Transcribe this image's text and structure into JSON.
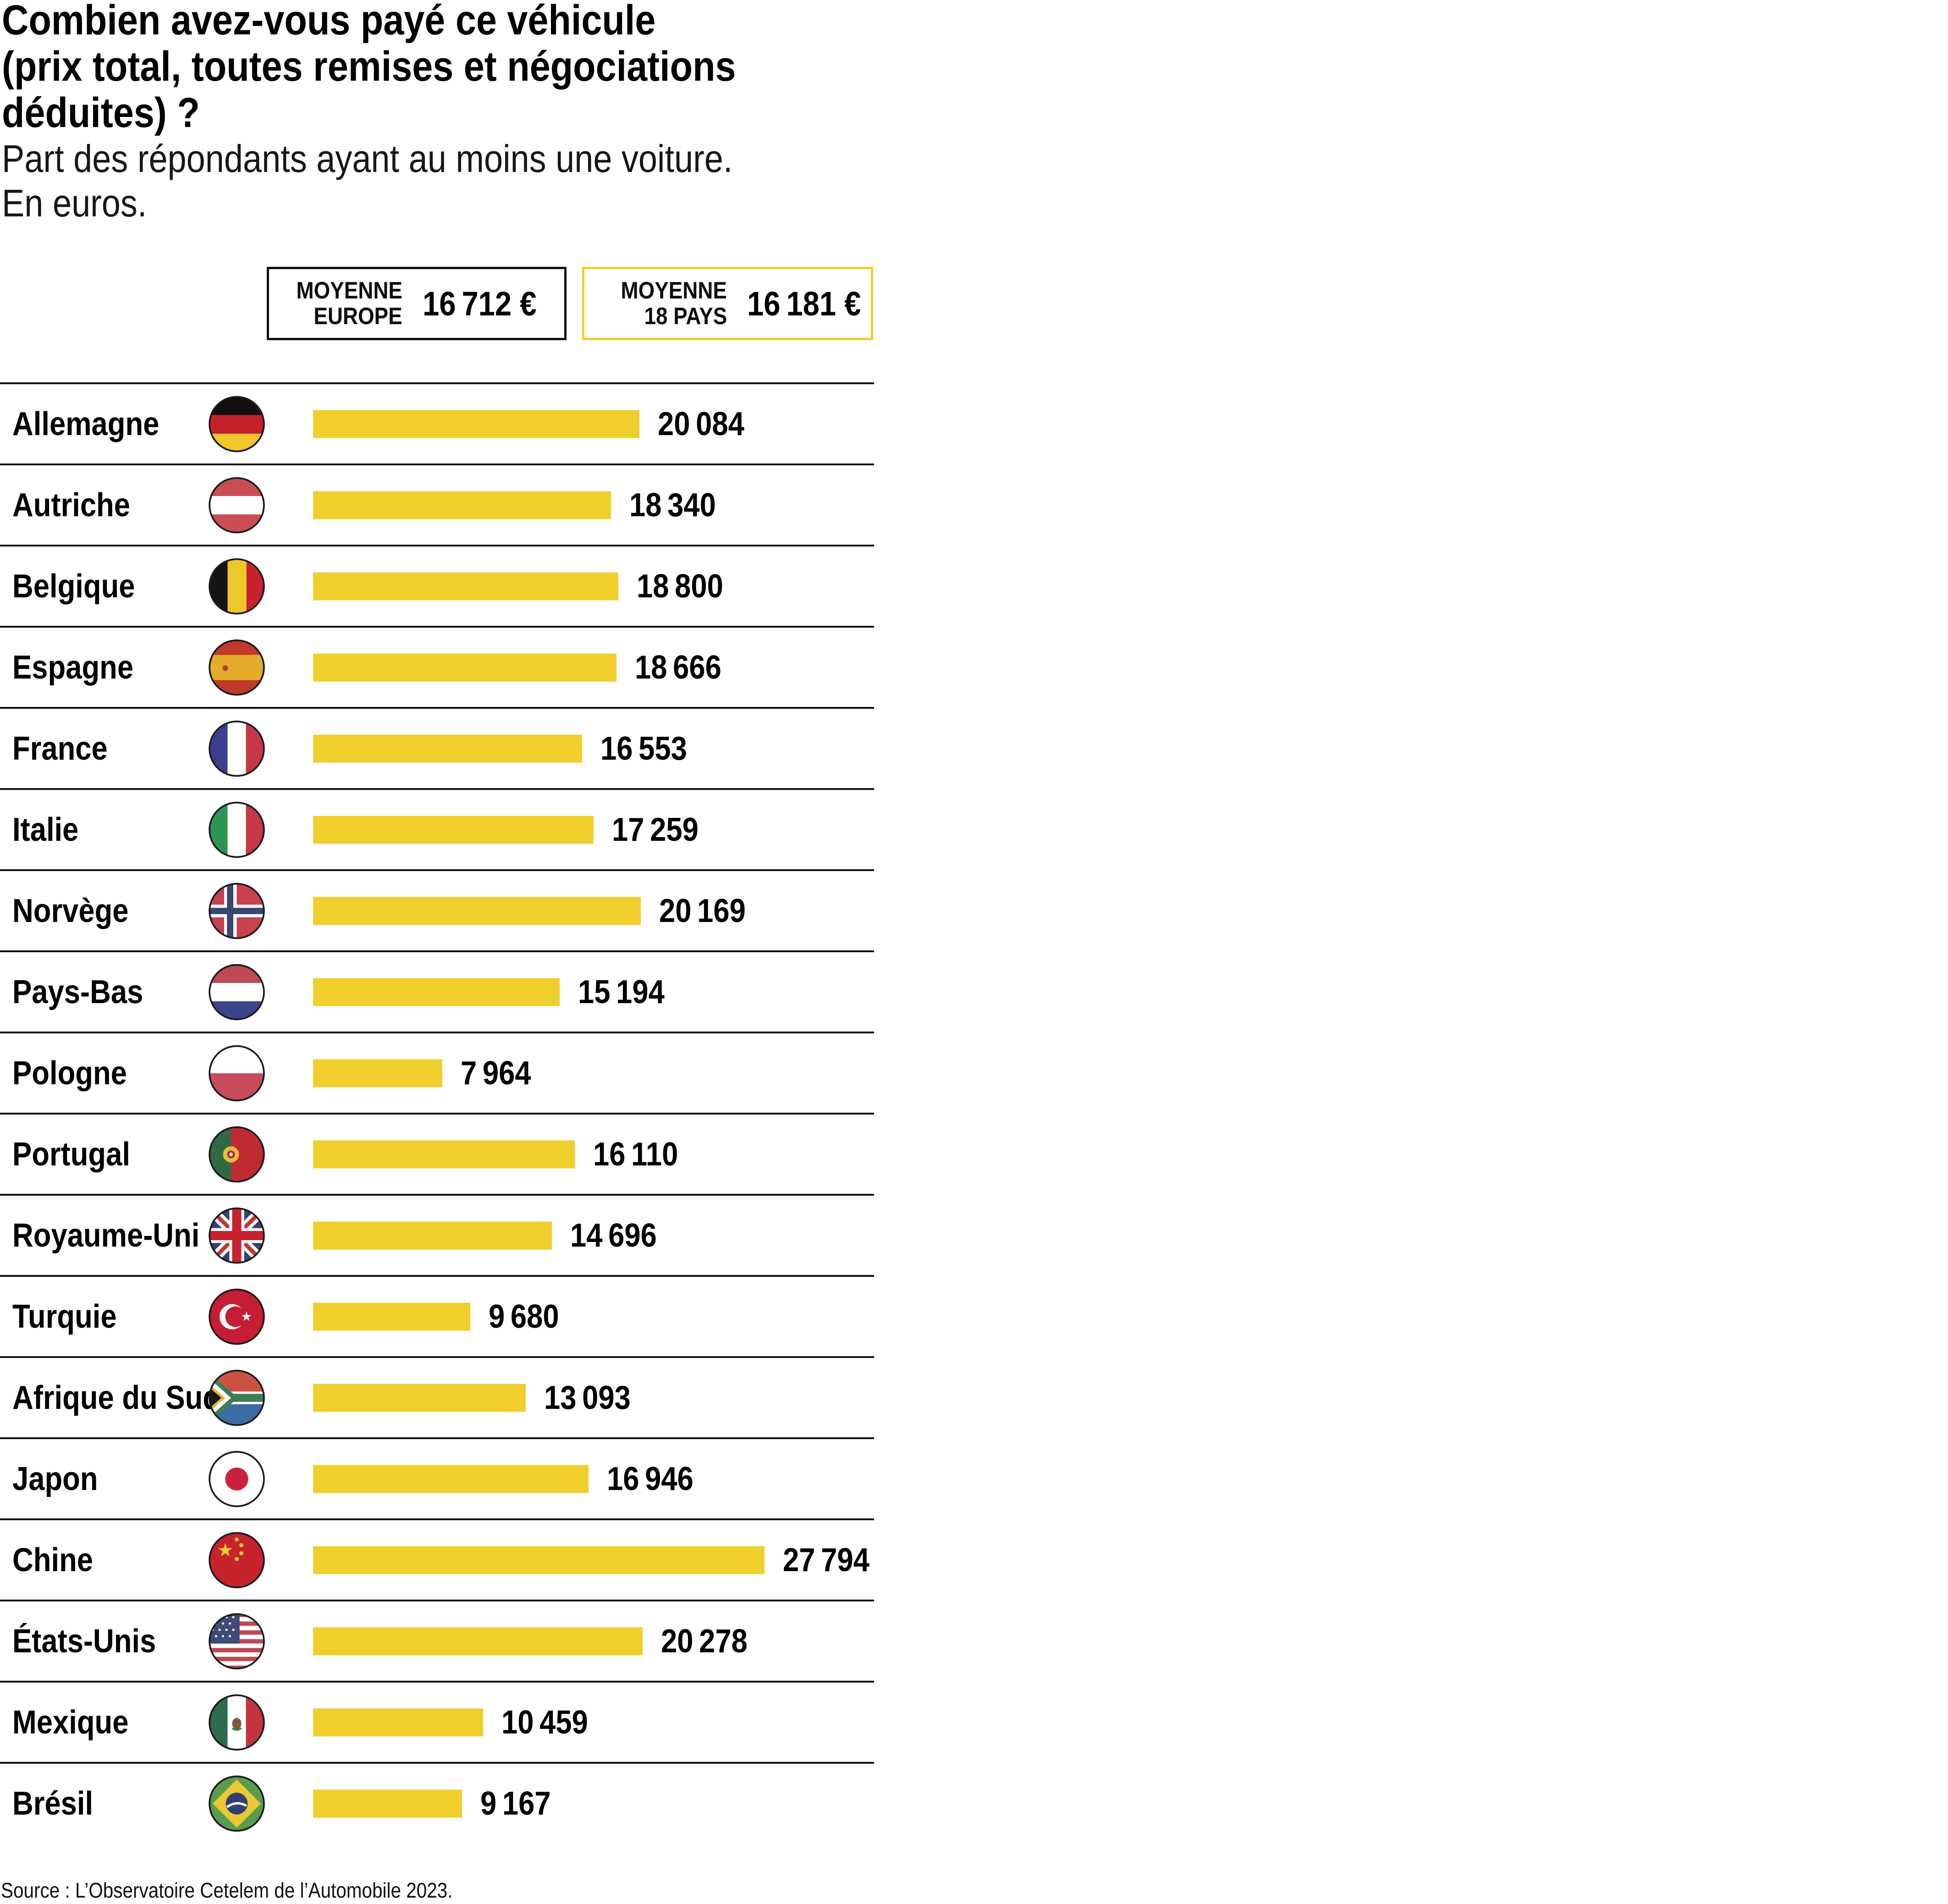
{
  "title": {
    "line1": "Combien avez-vous payé ce véhicule",
    "line2": "(prix total, toutes remises et négociations",
    "line3": "déduites) ?"
  },
  "subtitle": {
    "line1": "Part des répondants ayant au moins une voiture.",
    "line2": "En euros."
  },
  "averages": [
    {
      "label_line1": "MOYENNE",
      "label_line2": "EUROPE",
      "value_label": "16 712 €",
      "value": 16712,
      "border_color": "#0f0f0f"
    },
    {
      "label_line1": "MOYENNE",
      "label_line2": "18 PAYS",
      "value_label": "16 181 €",
      "value": 16181,
      "border_color": "#F0CE2B"
    }
  ],
  "source": "Source : L’Observatoire Cetelem de l’Automobile 2023.",
  "colors": {
    "bar_yellow": "#F0CE2B",
    "separator_black": "#0f0f0f"
  },
  "chart_data": {
    "type": "bar",
    "orientation": "horizontal",
    "title": "Combien avez-vous payé ce véhicule (prix total, toutes remises et négociations déduites) ?",
    "subtitle": "Part des répondants ayant au moins une voiture. En euros.",
    "unit": "euros",
    "categories": [
      "Allemagne",
      "Autriche",
      "Belgique",
      "Espagne",
      "France",
      "Italie",
      "Norvège",
      "Pays-Bas",
      "Pologne",
      "Portugal",
      "Royaume-Uni",
      "Turquie",
      "Afrique du Sud",
      "Japon",
      "Chine",
      "États-Unis",
      "Mexique",
      "Brésil"
    ],
    "values": [
      20084,
      18340,
      18800,
      18666,
      16553,
      17259,
      20169,
      15194,
      7964,
      16110,
      14696,
      9680,
      13093,
      16946,
      27794,
      20278,
      10459,
      9167
    ],
    "value_labels": [
      "20 084",
      "18 340",
      "18 800",
      "18 666",
      "16 553",
      "17 259",
      "20 169",
      "15 194",
      "7 964",
      "16 110",
      "14 696",
      "9 680",
      "13 093",
      "16 946",
      "27 794",
      "20 278",
      "10 459",
      "9 167"
    ],
    "flags": [
      "de",
      "at",
      "be",
      "es",
      "fr",
      "it",
      "no",
      "nl",
      "pl",
      "pt",
      "gb",
      "tr",
      "za",
      "jp",
      "cn",
      "us",
      "mx",
      "br"
    ],
    "xlim": [
      0,
      27794
    ],
    "grid": false,
    "legend": "none",
    "averages": {
      "moyenne_europe": 16712,
      "moyenne_18_pays": 16181
    },
    "source": "Source : L’Observatoire Cetelem de l’Automobile 2023."
  }
}
